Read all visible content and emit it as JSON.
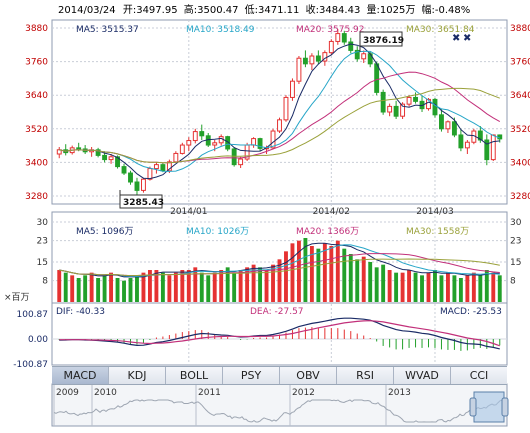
{
  "header": {
    "date": "2014/03/24",
    "open_label": "开:",
    "open": "3497.95",
    "high_label": "高:",
    "high": "3500.47",
    "low_label": "低:",
    "low": "3471.11",
    "close_label": "收:",
    "close": "3484.43",
    "volume_label": "量:",
    "volume": "1025万",
    "change_label": "幅:",
    "change": "-0.48%"
  },
  "legends": {
    "price": [
      {
        "label": "MA5: 3515.37",
        "color": "#1a2b66"
      },
      {
        "label": "MA10: 3518.49",
        "color": "#27a6c8"
      },
      {
        "label": "MA20: 3575.92",
        "color": "#c2307a"
      },
      {
        "label": "MA30: 3651.84",
        "color": "#9aa13a"
      }
    ],
    "volume": [
      {
        "label": "MA5: 1096万",
        "color": "#1a2b66"
      },
      {
        "label": "MA10: 1026万",
        "color": "#27a6c8"
      },
      {
        "label": "MA20: 1366万",
        "color": "#c2307a"
      },
      {
        "label": "MA30: 1558万",
        "color": "#9aa13a"
      }
    ],
    "macd": [
      {
        "label": "DIF: -40.33",
        "color": "#1a2b66"
      },
      {
        "label": "DEA: -27.57",
        "color": "#c2307a"
      },
      {
        "label": "MACD: -25.53",
        "color": "#1a2b66"
      }
    ]
  },
  "volume_unit": "×百万",
  "tabs": [
    "MACD",
    "KDJ",
    "BOLL",
    "PSY",
    "OBV",
    "RSI",
    "WVAD",
    "CCI"
  ],
  "active_tab": "MACD",
  "navigator_years": [
    "2009",
    "2010",
    "2011",
    "2012",
    "2013"
  ],
  "annotations": {
    "high_value": "3876.19",
    "low_value": "3285.43"
  },
  "colors": {
    "up": "#e53232",
    "down": "#22a02a",
    "grid": "#c9ced8",
    "axis_text": "#c00000"
  },
  "chart_data": [
    {
      "type": "candlestick",
      "panel": "price",
      "ylim": [
        3280,
        3880
      ],
      "yticks": [
        3280,
        3400,
        3520,
        3640,
        3760,
        3880
      ],
      "xtick_labels": [
        "2014/01",
        "2014/02",
        "2014/03"
      ],
      "candles_ohlc": [
        [
          3430,
          3455,
          3415,
          3445
        ],
        [
          3445,
          3465,
          3425,
          3435
        ],
        [
          3435,
          3460,
          3428,
          3452
        ],
        [
          3452,
          3470,
          3440,
          3448
        ],
        [
          3448,
          3462,
          3430,
          3438
        ],
        [
          3438,
          3455,
          3420,
          3445
        ],
        [
          3445,
          3452,
          3418,
          3425
        ],
        [
          3425,
          3440,
          3400,
          3410
        ],
        [
          3410,
          3430,
          3395,
          3420
        ],
        [
          3420,
          3425,
          3378,
          3385
        ],
        [
          3385,
          3395,
          3355,
          3362
        ],
        [
          3362,
          3370,
          3320,
          3330
        ],
        [
          3330,
          3345,
          3285,
          3300
        ],
        [
          3300,
          3345,
          3292,
          3340
        ],
        [
          3340,
          3385,
          3335,
          3378
        ],
        [
          3378,
          3400,
          3360,
          3392
        ],
        [
          3392,
          3398,
          3365,
          3370
        ],
        [
          3370,
          3410,
          3362,
          3402
        ],
        [
          3402,
          3440,
          3398,
          3432
        ],
        [
          3432,
          3470,
          3428,
          3462
        ],
        [
          3462,
          3490,
          3440,
          3478
        ],
        [
          3478,
          3520,
          3468,
          3510
        ],
        [
          3510,
          3535,
          3480,
          3495
        ],
        [
          3495,
          3505,
          3455,
          3462
        ],
        [
          3462,
          3480,
          3440,
          3470
        ],
        [
          3470,
          3500,
          3460,
          3492
        ],
        [
          3492,
          3495,
          3440,
          3448
        ],
        [
          3448,
          3455,
          3385,
          3392
        ],
        [
          3392,
          3420,
          3380,
          3412
        ],
        [
          3412,
          3470,
          3405,
          3462
        ],
        [
          3462,
          3490,
          3452,
          3485
        ],
        [
          3485,
          3488,
          3440,
          3450
        ],
        [
          3450,
          3460,
          3430,
          3452
        ],
        [
          3452,
          3520,
          3448,
          3512
        ],
        [
          3512,
          3560,
          3505,
          3552
        ],
        [
          3552,
          3640,
          3545,
          3632
        ],
        [
          3632,
          3700,
          3620,
          3690
        ],
        [
          3690,
          3780,
          3680,
          3772
        ],
        [
          3772,
          3800,
          3740,
          3752
        ],
        [
          3752,
          3790,
          3730,
          3780
        ],
        [
          3780,
          3800,
          3750,
          3762
        ],
        [
          3762,
          3800,
          3745,
          3792
        ],
        [
          3792,
          3840,
          3785,
          3832
        ],
        [
          3832,
          3876,
          3820,
          3860
        ],
        [
          3860,
          3870,
          3820,
          3830
        ],
        [
          3830,
          3845,
          3790,
          3800
        ],
        [
          3800,
          3815,
          3760,
          3770
        ],
        [
          3770,
          3800,
          3755,
          3788
        ],
        [
          3788,
          3795,
          3740,
          3752
        ],
        [
          3752,
          3760,
          3640,
          3650
        ],
        [
          3650,
          3660,
          3570,
          3580
        ],
        [
          3580,
          3610,
          3565,
          3600
        ],
        [
          3600,
          3620,
          3555,
          3565
        ],
        [
          3565,
          3615,
          3555,
          3608
        ],
        [
          3608,
          3640,
          3600,
          3632
        ],
        [
          3632,
          3650,
          3610,
          3618
        ],
        [
          3618,
          3640,
          3580,
          3592
        ],
        [
          3592,
          3630,
          3585,
          3625
        ],
        [
          3625,
          3630,
          3560,
          3570
        ],
        [
          3570,
          3590,
          3510,
          3520
        ],
        [
          3520,
          3550,
          3505,
          3545
        ],
        [
          3545,
          3560,
          3490,
          3498
        ],
        [
          3498,
          3520,
          3440,
          3452
        ],
        [
          3452,
          3480,
          3430,
          3472
        ],
        [
          3472,
          3520,
          3465,
          3512
        ],
        [
          3512,
          3530,
          3470,
          3480
        ],
        [
          3480,
          3500,
          3390,
          3410
        ],
        [
          3410,
          3500,
          3405,
          3498
        ],
        [
          3498,
          3500,
          3471,
          3484
        ]
      ]
    },
    {
      "type": "bar",
      "panel": "volume",
      "ylim": [
        0,
        23
      ],
      "yticks": [
        8,
        15,
        23,
        30
      ],
      "values": [
        12,
        11,
        10,
        9,
        10,
        11,
        9,
        10,
        11,
        9,
        8,
        9,
        10,
        11,
        12,
        12,
        11,
        10,
        11,
        12,
        12,
        13,
        11,
        10,
        11,
        12,
        13,
        11,
        12,
        13,
        14,
        13,
        12,
        14,
        16,
        19,
        22,
        23,
        24,
        21,
        20,
        22,
        21,
        23,
        20,
        18,
        16,
        17,
        15,
        13,
        14,
        12,
        11,
        11,
        12,
        11,
        10,
        11,
        12,
        10,
        11,
        10,
        9,
        10,
        11,
        10,
        12,
        11,
        10
      ],
      "up": [
        true,
        false,
        true,
        false,
        false,
        true,
        false,
        false,
        true,
        false,
        false,
        false,
        false,
        true,
        true,
        true,
        false,
        true,
        true,
        true,
        true,
        true,
        false,
        false,
        true,
        true,
        false,
        false,
        true,
        true,
        true,
        false,
        true,
        true,
        true,
        true,
        true,
        true,
        false,
        true,
        false,
        true,
        true,
        true,
        false,
        false,
        false,
        true,
        false,
        false,
        false,
        true,
        false,
        true,
        true,
        false,
        false,
        true,
        false,
        false,
        true,
        false,
        false,
        true,
        true,
        false,
        false,
        true,
        false
      ]
    },
    {
      "type": "line",
      "panel": "macd",
      "ylim": [
        -100.87,
        100.87
      ],
      "yticks": [
        -100.87,
        0.0,
        100.87
      ],
      "dif": [
        -5,
        -4,
        -3,
        -3,
        -4,
        -5,
        -6,
        -8,
        -10,
        -13,
        -17,
        -22,
        -26,
        -25,
        -20,
        -14,
        -11,
        -6,
        0,
        6,
        12,
        18,
        22,
        21,
        18,
        16,
        15,
        11,
        8,
        9,
        12,
        14,
        14,
        18,
        24,
        31,
        40,
        50,
        57,
        63,
        67,
        72,
        77,
        82,
        84,
        84,
        82,
        80,
        76,
        67,
        55,
        47,
        38,
        33,
        31,
        28,
        23,
        20,
        14,
        6,
        0,
        -6,
        -14,
        -19,
        -20,
        -22,
        -30,
        -34,
        -40
      ],
      "dea": [
        -3,
        -3,
        -3,
        -3,
        -3,
        -4,
        -4,
        -5,
        -6,
        -7,
        -9,
        -12,
        -15,
        -17,
        -18,
        -17,
        -16,
        -14,
        -11,
        -8,
        -4,
        0,
        4,
        7,
        9,
        10,
        11,
        11,
        10,
        10,
        10,
        11,
        11,
        12,
        15,
        18,
        22,
        28,
        34,
        39,
        45,
        50,
        55,
        60,
        65,
        68,
        71,
        73,
        74,
        72,
        69,
        64,
        59,
        54,
        49,
        45,
        41,
        37,
        32,
        27,
        22,
        16,
        10,
        4,
        0,
        -4,
        -10,
        -18,
        -27.57
      ],
      "macd_hist": [
        -4,
        -2,
        0,
        0,
        -2,
        -2,
        -4,
        -6,
        -8,
        -12,
        -16,
        -20,
        -22,
        -16,
        -4,
        6,
        10,
        16,
        22,
        28,
        32,
        36,
        36,
        28,
        18,
        12,
        8,
        0,
        -4,
        -2,
        4,
        6,
        6,
        12,
        18,
        26,
        36,
        44,
        46,
        48,
        44,
        44,
        44,
        44,
        38,
        32,
        22,
        14,
        4,
        -10,
        -28,
        -34,
        -42,
        -42,
        -36,
        -34,
        -36,
        -34,
        -36,
        -42,
        -44,
        -44,
        -48,
        -46,
        -40,
        -36,
        -40,
        -32,
        -25.53
      ]
    }
  ]
}
